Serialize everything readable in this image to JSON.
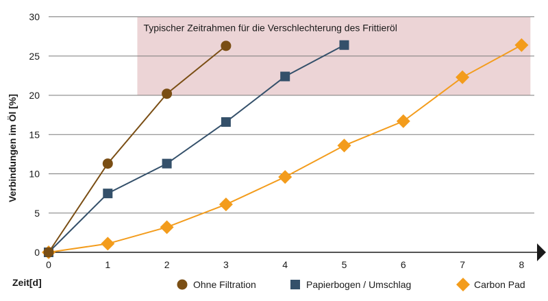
{
  "chart_data": {
    "type": "line",
    "xlabel": "Zeit[d]",
    "ylabel": "Verbindungen im Öl [%]",
    "xlim": [
      0,
      8
    ],
    "ylim": [
      0,
      30
    ],
    "x_ticks": [
      0,
      1,
      2,
      3,
      4,
      5,
      6,
      7,
      8
    ],
    "y_ticks": [
      0,
      5,
      10,
      15,
      20,
      25,
      30
    ],
    "grid": "horizontal",
    "legend_position": "bottom",
    "annotation": {
      "text": "Typischer Zeitrahmen für die Verschlechterung des Frittieröl",
      "x_range": [
        1.5,
        8.15
      ],
      "y_range": [
        20,
        30
      ],
      "color": "#ecd4d6"
    },
    "series": [
      {
        "name": "Ohne Filtration",
        "marker": "circle",
        "color": "#7a4e14",
        "x": [
          0,
          1,
          2,
          3
        ],
        "y": [
          0,
          11.3,
          20.2,
          26.3
        ]
      },
      {
        "name": "Papierbogen / Umschlag",
        "marker": "square",
        "color": "#34506a",
        "x": [
          0,
          1,
          2,
          3,
          4,
          5
        ],
        "y": [
          0,
          7.5,
          11.3,
          16.6,
          22.4,
          26.4
        ]
      },
      {
        "name": "Carbon Pad",
        "marker": "diamond",
        "color": "#f39c1c",
        "x": [
          0,
          1,
          2,
          3,
          4,
          5,
          6,
          7,
          8
        ],
        "y": [
          0,
          1.1,
          3.2,
          6.1,
          9.6,
          13.6,
          16.7,
          22.3,
          26.4
        ]
      }
    ]
  }
}
